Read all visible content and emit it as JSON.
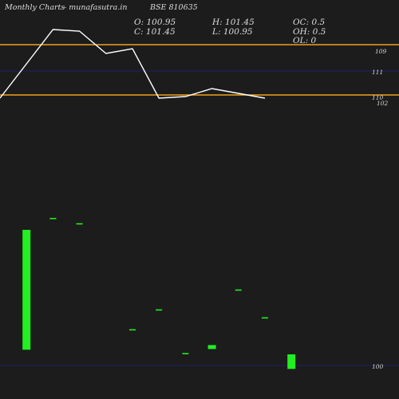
{
  "header": {
    "brand": "Monthly Charts",
    "site": "-  munafasutra.in",
    "symbol": "BSE 810635",
    "open": "O: 100.95",
    "close": "C: 101.45",
    "high": "H: 101.45",
    "low": "L: 100.95",
    "oc": "OC: 0.5",
    "oh": "OH: 0.5",
    "ol": "OL: 0"
  },
  "colors": {
    "background": "#1c1c1c",
    "candle_up": "#22ee22",
    "price_line": "#ffffff",
    "level_line": "#f0a020",
    "grid_line": "#1e1e6e"
  },
  "chart_data": {
    "type": "candlestick",
    "price_axis_labels": [
      "109",
      "111",
      "110",
      "102",
      "100"
    ],
    "horizontal_levels": [
      {
        "label": "109",
        "kind": "orange"
      },
      {
        "label": "111",
        "kind": "blue"
      },
      {
        "label": "110",
        "kind": "orange"
      },
      {
        "label": "100",
        "kind": "blue"
      }
    ],
    "candles": [
      {
        "bar": 1,
        "open": 100.95,
        "close": 110.0
      },
      {
        "bar": 2,
        "open": 110.9,
        "close": 110.9
      },
      {
        "bar": 3,
        "open": 110.5,
        "close": 110.5
      },
      {
        "bar": 5,
        "open": 102.5,
        "close": 102.5
      },
      {
        "bar": 6,
        "open": 104.0,
        "close": 104.0
      },
      {
        "bar": 7,
        "open": 100.7,
        "close": 100.7
      },
      {
        "bar": 8,
        "open": 101.0,
        "close": 101.3
      },
      {
        "bar": 9,
        "open": 105.5,
        "close": 105.5
      },
      {
        "bar": 10,
        "open": 103.4,
        "close": 103.4
      },
      {
        "bar": 11,
        "open": 99.5,
        "close": 100.6
      }
    ],
    "line_series": [
      {
        "bar": 0,
        "value": 110.0
      },
      {
        "bar": 2,
        "value": 114.3
      },
      {
        "bar": 3,
        "value": 114.2
      },
      {
        "bar": 4,
        "value": 112.8
      },
      {
        "bar": 5,
        "value": 113.1
      },
      {
        "bar": 6,
        "value": 110.0
      },
      {
        "bar": 7,
        "value": 110.1
      },
      {
        "bar": 8,
        "value": 110.6
      },
      {
        "bar": 9,
        "value": 110.3
      },
      {
        "bar": 10,
        "value": 110.0
      }
    ]
  }
}
